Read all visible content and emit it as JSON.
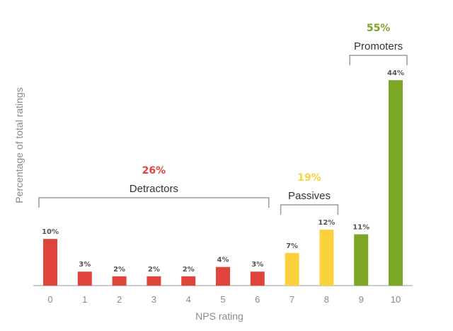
{
  "chart_data": {
    "type": "bar",
    "xlabel": "NPS rating",
    "ylabel": "Percentage of total ratings",
    "categories": [
      "0",
      "1",
      "2",
      "3",
      "4",
      "5",
      "6",
      "7",
      "8",
      "9",
      "10"
    ],
    "values": [
      10,
      3,
      2,
      2,
      2,
      4,
      3,
      7,
      12,
      11,
      44
    ],
    "value_labels": [
      "10%",
      "3%",
      "2%",
      "2%",
      "2%",
      "4%",
      "3%",
      "7%",
      "12%",
      "11%",
      "44%"
    ],
    "ylim": [
      0,
      46
    ],
    "grid": false,
    "colors": {
      "detractors": "#e0443c",
      "passives": "#fcd23c",
      "promoters": "#7ca626",
      "axis": "#bdbdbd",
      "bracket": "#9a9a9a"
    },
    "groups": [
      {
        "name": "Detractors",
        "percent": "26%",
        "from": 0,
        "to": 6,
        "color": "#e0443c"
      },
      {
        "name": "Passives",
        "percent": "19%",
        "from": 7,
        "to": 8,
        "color": "#fcd23c"
      },
      {
        "name": "Promoters",
        "percent": "55%",
        "from": 9,
        "to": 10,
        "color": "#7ca626"
      }
    ]
  }
}
